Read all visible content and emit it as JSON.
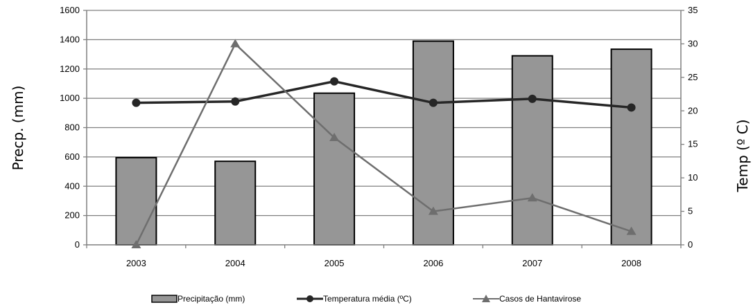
{
  "chart_data": {
    "type": "bar",
    "title": "",
    "xlabel": "",
    "ylabel": "Precp. (mm)",
    "y2label": "Temp (º C)",
    "categories": [
      "2003",
      "2004",
      "2005",
      "2006",
      "2007",
      "2008"
    ],
    "ylim": [
      0,
      1600
    ],
    "yticks": [
      0,
      200,
      400,
      600,
      800,
      1000,
      1200,
      1400,
      1600
    ],
    "y2lim": [
      0,
      35
    ],
    "y2ticks": [
      0,
      5,
      10,
      15,
      20,
      25,
      30,
      35
    ],
    "grid": true,
    "legend_position": "bottom",
    "series": [
      {
        "name": "Precipitação (mm)",
        "type": "bar",
        "axis": "left",
        "color": "#969696",
        "values": [
          595,
          570,
          1035,
          1390,
          1290,
          1335
        ]
      },
      {
        "name": "Temperatura média (ºC)",
        "type": "line",
        "axis": "right",
        "marker": "circle",
        "color": "#262626",
        "values": [
          21.2,
          21.4,
          24.4,
          21.2,
          21.8,
          20.5
        ]
      },
      {
        "name": "Casos de Hantavirose",
        "type": "line",
        "axis": "right",
        "marker": "triangle",
        "color": "#6e6e6e",
        "values": [
          0,
          30,
          16,
          5,
          7,
          2
        ]
      }
    ]
  }
}
